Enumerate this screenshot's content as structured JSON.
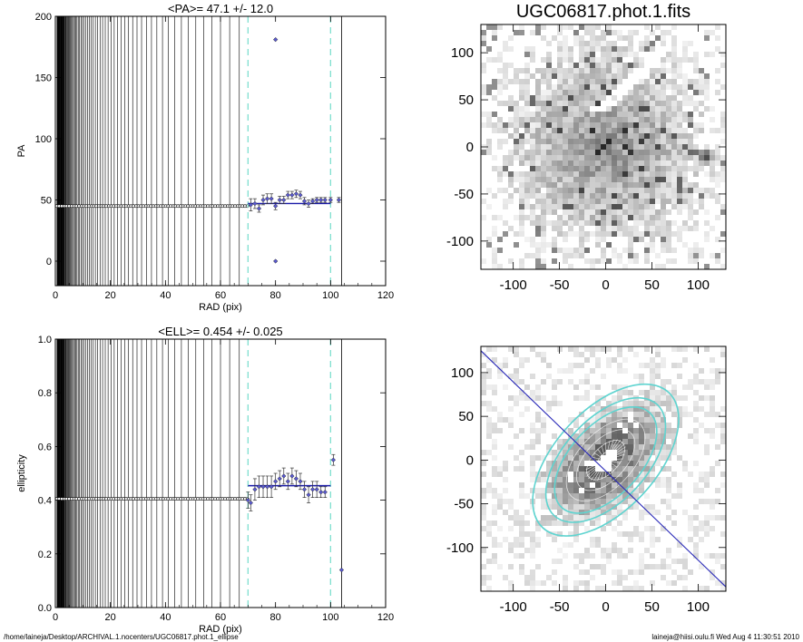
{
  "footer": {
    "path": "/home/laineja/Desktop/ARCHIVAL.1.nocenters/UGC06817.phot.1_ellipse",
    "user_stamp": "laineja@hiisi.oulu.fi  Wed Aug  4 11:30:51 2010"
  },
  "chart_data": [
    {
      "id": "pa",
      "type": "scatter",
      "title": "<PA>=  47.1 +/-  12.0",
      "xlabel": "RAD (pix)",
      "ylabel": "PA",
      "xlim": [
        0,
        120
      ],
      "ylim": [
        -20,
        200
      ],
      "xticks": [
        0,
        20,
        40,
        60,
        80,
        100,
        120
      ],
      "yticks": [
        0,
        50,
        100,
        150,
        200
      ],
      "grid": false,
      "vlines_dashed": [
        70,
        100
      ],
      "vline_solid": 104,
      "fit": {
        "x": [
          70,
          100
        ],
        "y": 47.1
      },
      "inner_value": 45,
      "points": [
        {
          "x": 71,
          "y": 46,
          "err": 5
        },
        {
          "x": 72.5,
          "y": 47,
          "err": 4
        },
        {
          "x": 74,
          "y": 43,
          "err": 3
        },
        {
          "x": 75.5,
          "y": 50,
          "err": 4
        },
        {
          "x": 77,
          "y": 51,
          "err": 4
        },
        {
          "x": 78.5,
          "y": 51,
          "err": 4
        },
        {
          "x": 80,
          "y": 45,
          "err": 3
        },
        {
          "x": 81.5,
          "y": 50,
          "err": 3
        },
        {
          "x": 83,
          "y": 50,
          "err": 3
        },
        {
          "x": 84.5,
          "y": 54,
          "err": 3
        },
        {
          "x": 86,
          "y": 54,
          "err": 3
        },
        {
          "x": 87.5,
          "y": 55,
          "err": 3
        },
        {
          "x": 89,
          "y": 54,
          "err": 3
        },
        {
          "x": 90.5,
          "y": 49,
          "err": 3
        },
        {
          "x": 92,
          "y": 47,
          "err": 3
        },
        {
          "x": 93.5,
          "y": 49,
          "err": 2
        },
        {
          "x": 95,
          "y": 50,
          "err": 2
        },
        {
          "x": 96.5,
          "y": 50,
          "err": 2
        },
        {
          "x": 98,
          "y": 50,
          "err": 2
        },
        {
          "x": 100,
          "y": 50,
          "err": 2
        },
        {
          "x": 103,
          "y": 50,
          "err": 2
        },
        {
          "x": 80,
          "y": 181,
          "err": 0
        },
        {
          "x": 80,
          "y": 0,
          "err": 0
        }
      ]
    },
    {
      "id": "ell",
      "type": "scatter",
      "title": "<ELL>= 0.454 +/-  0.025",
      "xlabel": "RAD (pix)",
      "ylabel": "ellipticity",
      "xlim": [
        0,
        120
      ],
      "ylim": [
        0.0,
        1.0
      ],
      "xticks": [
        0,
        20,
        40,
        60,
        80,
        100,
        120
      ],
      "yticks": [
        0.0,
        0.2,
        0.4,
        0.6,
        0.8,
        1.0
      ],
      "grid": false,
      "vlines_dashed": [
        70,
        100
      ],
      "vline_solid": 104,
      "fit": {
        "x": [
          70,
          100
        ],
        "y": 0.454
      },
      "inner_value": 0.405,
      "points": [
        {
          "x": 70,
          "y": 0.4,
          "err": 0.03
        },
        {
          "x": 71,
          "y": 0.39,
          "err": 0.03
        },
        {
          "x": 72.5,
          "y": 0.44,
          "err": 0.04
        },
        {
          "x": 74,
          "y": 0.45,
          "err": 0.04
        },
        {
          "x": 75.5,
          "y": 0.45,
          "err": 0.04
        },
        {
          "x": 77,
          "y": 0.45,
          "err": 0.04
        },
        {
          "x": 78.5,
          "y": 0.45,
          "err": 0.04
        },
        {
          "x": 80,
          "y": 0.47,
          "err": 0.03
        },
        {
          "x": 81.5,
          "y": 0.48,
          "err": 0.03
        },
        {
          "x": 83,
          "y": 0.49,
          "err": 0.03
        },
        {
          "x": 84.5,
          "y": 0.47,
          "err": 0.03
        },
        {
          "x": 86,
          "y": 0.49,
          "err": 0.03
        },
        {
          "x": 87.5,
          "y": 0.48,
          "err": 0.03
        },
        {
          "x": 89,
          "y": 0.47,
          "err": 0.03
        },
        {
          "x": 90.5,
          "y": 0.44,
          "err": 0.03
        },
        {
          "x": 92,
          "y": 0.42,
          "err": 0.03
        },
        {
          "x": 93.5,
          "y": 0.44,
          "err": 0.03
        },
        {
          "x": 95,
          "y": 0.44,
          "err": 0.03
        },
        {
          "x": 96.5,
          "y": 0.43,
          "err": 0.02
        },
        {
          "x": 98,
          "y": 0.43,
          "err": 0.02
        },
        {
          "x": 101,
          "y": 0.55,
          "err": 0.02
        },
        {
          "x": 104,
          "y": 0.14,
          "err": 0
        }
      ]
    },
    {
      "id": "img-top",
      "type": "heatmap",
      "title": "UGC06817.phot.1.fits",
      "xlim": [
        -135,
        130
      ],
      "ylim": [
        -130,
        130
      ],
      "xticks": [
        -100,
        -50,
        0,
        50,
        100
      ],
      "yticks": [
        -100,
        -50,
        0,
        50,
        100
      ],
      "colormap": "gray-inverted"
    },
    {
      "id": "img-bottom",
      "type": "heatmap",
      "title": "",
      "xlim": [
        -135,
        130
      ],
      "ylim": [
        -150,
        130
      ],
      "xticks": [
        -100,
        -50,
        0,
        50,
        100
      ],
      "yticks": [
        -100,
        -50,
        0,
        50,
        100
      ],
      "colormap": "gray-inverted",
      "ellipse": {
        "pa": 47.1,
        "ell": 0.454,
        "radii": [
          70,
          82,
          100
        ]
      }
    }
  ]
}
